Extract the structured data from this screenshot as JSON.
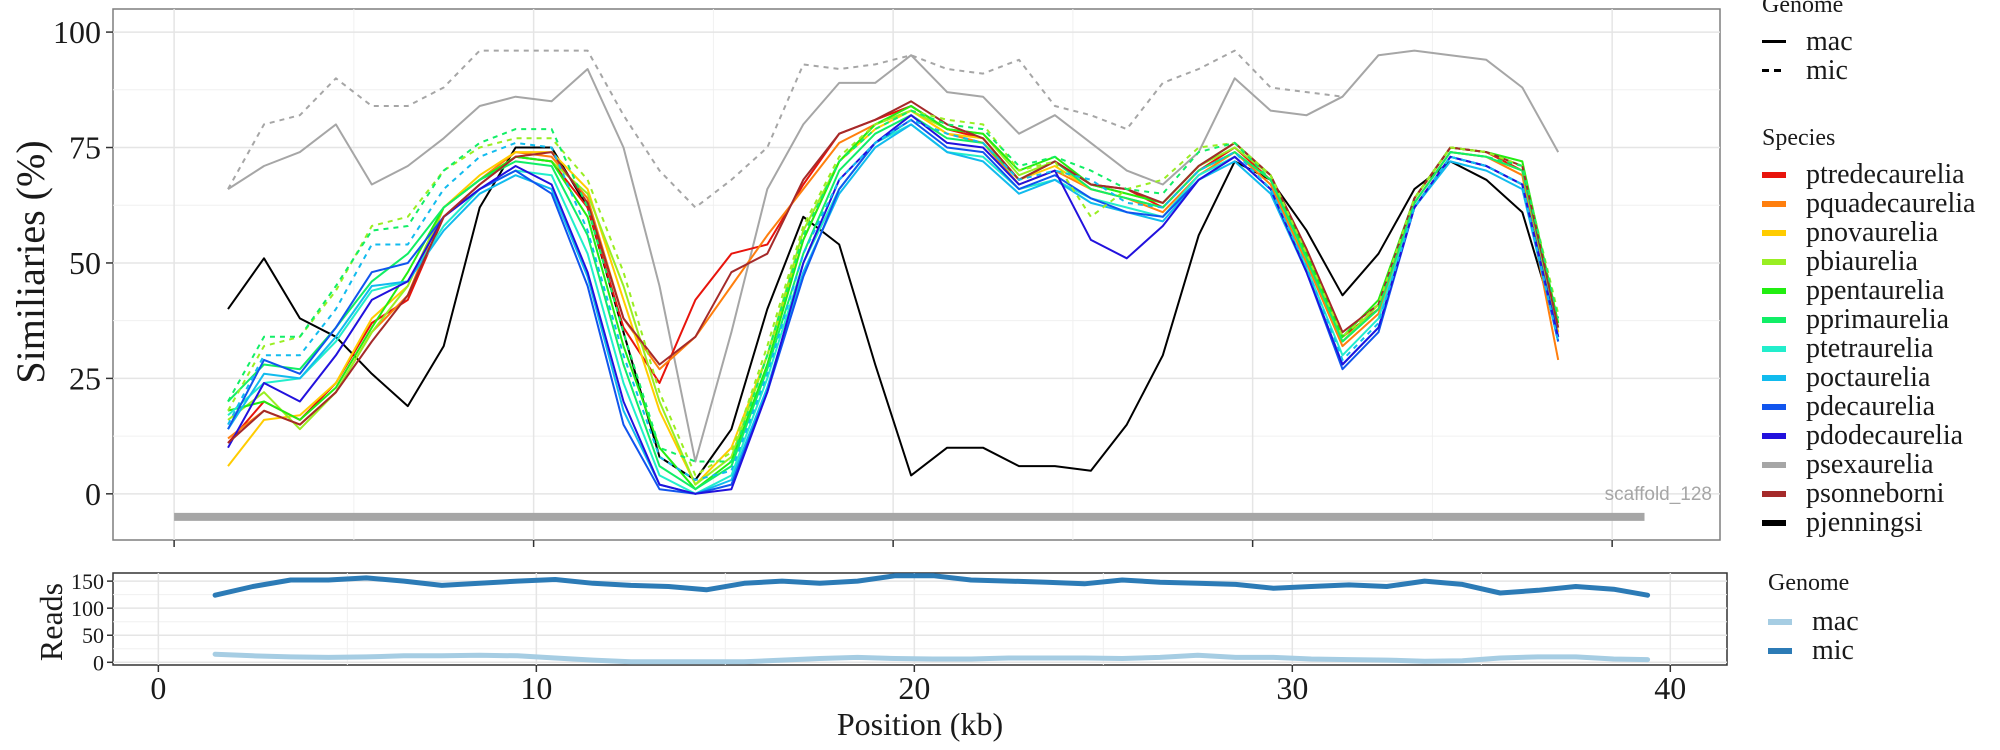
{
  "chart_data": [
    {
      "type": "line",
      "ylabel": "Similiaries (%)",
      "xlabel": "",
      "annotation": "scaffold_128",
      "ylim": [
        -10,
        105
      ],
      "xlim": [
        -1.7,
        43
      ],
      "yticks": [
        "0",
        "25",
        "50",
        "75",
        "100"
      ],
      "ytick_values": [
        0,
        25,
        50,
        75,
        100
      ],
      "xtick_values": [
        0,
        10,
        20,
        30,
        40
      ],
      "grid": true,
      "scaffold_bar": {
        "start": 0,
        "end": 40.9,
        "value": -5,
        "color": "#a6a6a6"
      },
      "x": [
        1.5,
        2.5,
        3.5,
        4.5,
        5.5,
        6.5,
        7.5,
        8.5,
        9.5,
        10.5,
        11.5,
        12.5,
        13.5,
        14.5,
        15.5,
        16.5,
        17.5,
        18.5,
        19.5,
        20.5,
        21.5,
        22.5,
        23.5,
        24.5,
        25.5,
        26.5,
        27.5,
        28.5,
        29.5,
        30.5,
        31.5,
        32.5,
        33.5,
        34.5,
        35.5,
        36.5,
        37.5,
        38.5
      ],
      "series": [
        {
          "name": "psexaurelia",
          "genome": "mac",
          "color": "#a6a6a6",
          "values": [
            66,
            71,
            74,
            80,
            67,
            71,
            77,
            84,
            86,
            85,
            92,
            75,
            45,
            7,
            35,
            66,
            80,
            89,
            89,
            95,
            87,
            86,
            78,
            82,
            76,
            70,
            67,
            74,
            90,
            83,
            82,
            86,
            95,
            96,
            95,
            94,
            88,
            74
          ]
        },
        {
          "name": "psexaurelia",
          "genome": "mic",
          "color": "#a6a6a6",
          "values": [
            66,
            80,
            82,
            90,
            84,
            84,
            88,
            96,
            96,
            96,
            96,
            82,
            70,
            62,
            68,
            75,
            93,
            92,
            93,
            95,
            92,
            91,
            94,
            84,
            82,
            79,
            89,
            92,
            96,
            88,
            87,
            86,
            null,
            null,
            null,
            null,
            null,
            null
          ]
        },
        {
          "name": "pjenningsi",
          "genome": "mac",
          "color": "#000000",
          "values": [
            40,
            51,
            38,
            34,
            26,
            19,
            32,
            62,
            75,
            75,
            62,
            35,
            8,
            3,
            14,
            40,
            60,
            54,
            28,
            4,
            10,
            10,
            6,
            6,
            5,
            15,
            30,
            56,
            72,
            68,
            57,
            43,
            52,
            66,
            72,
            68,
            61,
            35
          ]
        },
        {
          "name": "ptredecaurelia",
          "genome": "mac",
          "color": "#e8140c",
          "values": [
            11,
            20,
            16,
            24,
            37,
            42,
            60,
            67,
            73,
            72,
            62,
            36,
            24,
            42,
            52,
            54,
            67,
            78,
            81,
            84,
            79,
            77,
            68,
            72,
            67,
            66,
            62,
            70,
            75,
            68,
            52,
            34,
            40,
            64,
            75,
            74,
            70,
            34
          ]
        },
        {
          "name": "pquadecaurelia",
          "genome": "mac",
          "color": "#ff7f0e",
          "values": [
            12,
            18,
            15,
            22,
            35,
            43,
            62,
            68,
            74,
            73,
            64,
            38,
            27,
            34,
            45,
            56,
            66,
            76,
            80,
            83,
            78,
            76,
            67,
            70,
            66,
            64,
            61,
            69,
            74,
            67,
            50,
            32,
            39,
            63,
            74,
            73,
            69,
            29
          ]
        },
        {
          "name": "pnovaurelia",
          "genome": "mac",
          "color": "#ffcc00",
          "values": [
            6,
            16,
            17,
            24,
            38,
            45,
            62,
            69,
            74,
            74,
            66,
            42,
            18,
            2,
            10,
            30,
            55,
            72,
            79,
            83,
            78,
            77,
            68,
            71,
            66,
            64,
            62,
            70,
            74,
            68,
            51,
            33,
            40,
            63,
            74,
            73,
            70,
            35
          ]
        },
        {
          "name": "pbiaurelia",
          "genome": "mac",
          "color": "#99ee22",
          "values": [
            16,
            22,
            14,
            22,
            35,
            45,
            62,
            68,
            73,
            72,
            65,
            45,
            20,
            2,
            8,
            30,
            57,
            72,
            80,
            83,
            79,
            78,
            69,
            72,
            67,
            65,
            63,
            71,
            75,
            69,
            52,
            33,
            41,
            64,
            75,
            74,
            71,
            37
          ]
        },
        {
          "name": "ppentaurelia",
          "genome": "mac",
          "color": "#22ee11",
          "values": [
            18,
            20,
            16,
            23,
            36,
            48,
            62,
            68,
            73,
            72,
            60,
            32,
            10,
            1,
            7,
            28,
            55,
            72,
            80,
            84,
            79,
            78,
            70,
            73,
            67,
            65,
            63,
            71,
            76,
            69,
            52,
            34,
            42,
            64,
            75,
            74,
            72,
            37
          ]
        },
        {
          "name": "pprimaurelia",
          "genome": "mac",
          "color": "#11ee66",
          "values": [
            20,
            28,
            27,
            36,
            46,
            52,
            62,
            68,
            72,
            71,
            56,
            28,
            6,
            1,
            6,
            27,
            52,
            70,
            78,
            82,
            77,
            76,
            68,
            72,
            66,
            64,
            62,
            70,
            74,
            68,
            51,
            33,
            40,
            63,
            74,
            73,
            70,
            36
          ]
        },
        {
          "name": "ptetraurelia",
          "genome": "mac",
          "color": "#22eecc",
          "values": [
            17,
            24,
            25,
            33,
            44,
            46,
            58,
            66,
            70,
            69,
            52,
            24,
            4,
            0,
            4,
            25,
            50,
            66,
            76,
            80,
            74,
            73,
            66,
            68,
            64,
            62,
            60,
            69,
            73,
            66,
            49,
            30,
            38,
            62,
            73,
            71,
            67,
            34
          ]
        },
        {
          "name": "poctaurelia",
          "genome": "mac",
          "color": "#11bbee",
          "values": [
            14,
            26,
            25,
            34,
            45,
            46,
            57,
            65,
            69,
            66,
            47,
            18,
            2,
            0,
            3,
            23,
            48,
            65,
            75,
            80,
            74,
            72,
            65,
            68,
            63,
            61,
            59,
            68,
            72,
            65,
            48,
            28,
            36,
            62,
            72,
            70,
            66,
            33
          ]
        },
        {
          "name": "pdecaurelia",
          "genome": "mac",
          "color": "#1155ee",
          "values": [
            14,
            29,
            26,
            36,
            48,
            50,
            60,
            66,
            70,
            65,
            45,
            15,
            1,
            0,
            2,
            22,
            47,
            66,
            76,
            81,
            75,
            74,
            66,
            69,
            64,
            61,
            60,
            68,
            73,
            66,
            48,
            27,
            35,
            62,
            73,
            71,
            67,
            33
          ]
        },
        {
          "name": "pdodecaurelia",
          "genome": "mac",
          "color": "#2211dd",
          "values": [
            10,
            24,
            20,
            30,
            42,
            46,
            60,
            66,
            71,
            67,
            48,
            20,
            2,
            0,
            1,
            22,
            50,
            68,
            76,
            82,
            76,
            75,
            67,
            70,
            55,
            51,
            58,
            68,
            73,
            66,
            48,
            28,
            36,
            62,
            73,
            71,
            67,
            34
          ]
        },
        {
          "name": "psonneborni",
          "genome": "mac",
          "color": "#a52a2a",
          "values": [
            11,
            18,
            15,
            22,
            33,
            43,
            60,
            67,
            73,
            74,
            63,
            38,
            28,
            34,
            48,
            52,
            68,
            78,
            81,
            85,
            80,
            77,
            68,
            72,
            67,
            66,
            63,
            71,
            76,
            69,
            53,
            35,
            41,
            64,
            75,
            74,
            71,
            36
          ]
        },
        {
          "name": "pbiaurelia",
          "genome": "mic",
          "color": "#99ee22",
          "values": [
            18,
            32,
            34,
            44,
            58,
            60,
            70,
            75,
            77,
            77,
            68,
            48,
            22,
            4,
            9,
            32,
            58,
            73,
            80,
            83,
            81,
            80,
            70,
            72,
            60,
            66,
            68,
            75,
            76,
            69,
            52,
            34,
            41,
            64,
            75,
            74,
            71,
            39
          ]
        },
        {
          "name": "pprimaurelia",
          "genome": "mic",
          "color": "#11ee66",
          "values": [
            20,
            34,
            34,
            45,
            57,
            58,
            70,
            76,
            79,
            79,
            62,
            35,
            10,
            7,
            7,
            30,
            56,
            72,
            79,
            83,
            80,
            79,
            71,
            73,
            70,
            66,
            65,
            74,
            76,
            68,
            51,
            33,
            40,
            63,
            74,
            73,
            71,
            38
          ]
        },
        {
          "name": "poctaurelia",
          "genome": "mic",
          "color": "#11bbee",
          "values": [
            15,
            30,
            30,
            40,
            54,
            54,
            66,
            73,
            76,
            75,
            57,
            30,
            8,
            3,
            5,
            26,
            52,
            68,
            76,
            81,
            78,
            76,
            68,
            70,
            68,
            63,
            62,
            70,
            74,
            66,
            49,
            29,
            37,
            62,
            73,
            71,
            67,
            33
          ]
        }
      ]
    },
    {
      "type": "line",
      "ylabel": "Reads",
      "xlabel": "Position (kb)",
      "ylim": [
        -5,
        165
      ],
      "xlim": [
        -1.2,
        41.5
      ],
      "yticks": [
        "0",
        "50",
        "100",
        "150"
      ],
      "ytick_values": [
        0,
        50,
        100,
        150
      ],
      "xticks": [
        "0",
        "10",
        "20",
        "30",
        "40"
      ],
      "xtick_values": [
        0,
        10,
        20,
        30,
        40
      ],
      "grid": true,
      "x": [
        1.5,
        2.5,
        3.5,
        4.5,
        5.5,
        6.5,
        7.5,
        8.5,
        9.5,
        10.5,
        11.5,
        12.5,
        13.5,
        14.5,
        15.5,
        16.5,
        17.5,
        18.5,
        19.5,
        20.5,
        21.5,
        22.5,
        23.5,
        24.5,
        25.5,
        26.5,
        27.5,
        28.5,
        29.5,
        30.5,
        31.5,
        32.5,
        33.5,
        34.5,
        35.5,
        36.5,
        37.5,
        38.5,
        39.4
      ],
      "series": [
        {
          "name": "mic",
          "color": "#2c7bb6",
          "values": [
            124,
            140,
            152,
            152,
            156,
            150,
            142,
            146,
            150,
            153,
            146,
            142,
            140,
            134,
            146,
            150,
            146,
            150,
            160,
            160,
            152,
            150,
            148,
            145,
            152,
            148,
            146,
            144,
            137,
            140,
            143,
            140,
            150,
            144,
            128,
            133,
            140,
            135,
            124
          ]
        },
        {
          "name": "mac",
          "color": "#a6cde3",
          "values": [
            15,
            12,
            10,
            9,
            10,
            12,
            12,
            13,
            12,
            8,
            4,
            1,
            1,
            1,
            1,
            4,
            7,
            9,
            7,
            6,
            6,
            8,
            8,
            8,
            7,
            9,
            13,
            9,
            9,
            6,
            5,
            4,
            2,
            3,
            8,
            10,
            10,
            6,
            5
          ]
        }
      ]
    }
  ],
  "legend_genome": {
    "title": "Genome",
    "items": [
      {
        "label": "mac",
        "style": "solid"
      },
      {
        "label": "mic",
        "style": "dashed"
      }
    ]
  },
  "legend_species": {
    "title": "Species",
    "items": [
      {
        "label": "ptredecaurelia",
        "color": "#e8140c"
      },
      {
        "label": "pquadecaurelia",
        "color": "#ff7f0e"
      },
      {
        "label": "pnovaurelia",
        "color": "#ffcc00"
      },
      {
        "label": "pbiaurelia",
        "color": "#99ee22"
      },
      {
        "label": "ppentaurelia",
        "color": "#22ee11"
      },
      {
        "label": "pprimaurelia",
        "color": "#11ee66"
      },
      {
        "label": "ptetraurelia",
        "color": "#22eecc"
      },
      {
        "label": "poctaurelia",
        "color": "#11bbee"
      },
      {
        "label": "pdecaurelia",
        "color": "#1155ee"
      },
      {
        "label": "pdodecaurelia",
        "color": "#2211dd"
      },
      {
        "label": "psexaurelia",
        "color": "#a6a6a6"
      },
      {
        "label": "psonneborni",
        "color": "#a52a2a"
      },
      {
        "label": "pjenningsi",
        "color": "#000000"
      }
    ]
  },
  "legend_reads": {
    "title": "Genome",
    "items": [
      {
        "label": "mac",
        "color": "#a6cde3"
      },
      {
        "label": "mic",
        "color": "#2c7bb6"
      }
    ]
  }
}
